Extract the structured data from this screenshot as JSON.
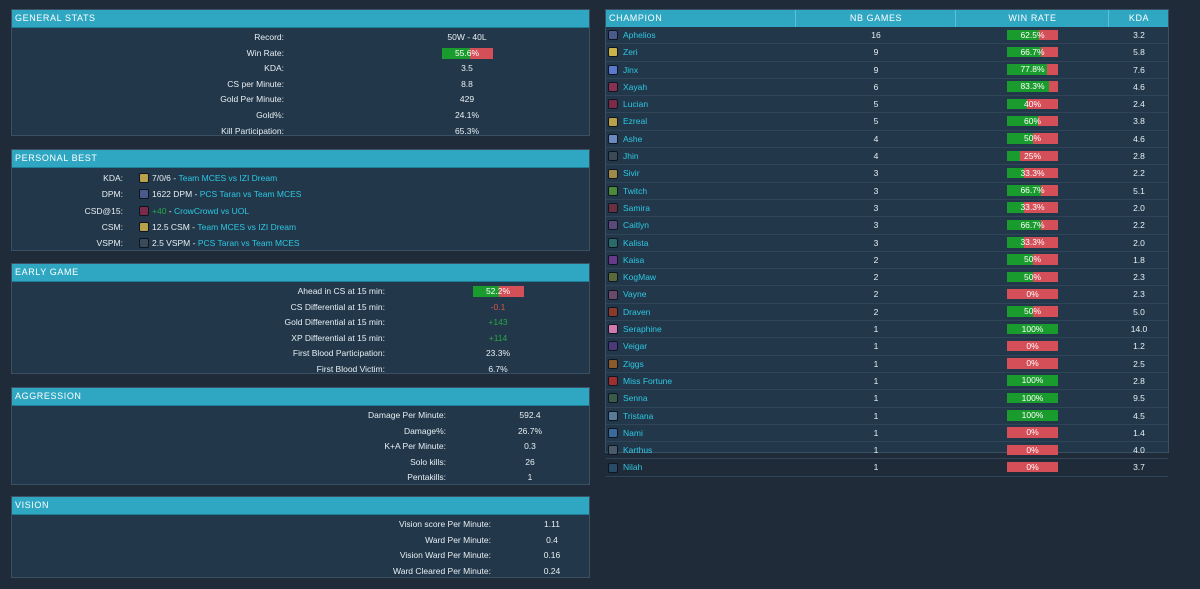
{
  "general_stats": {
    "title": "GENERAL STATS",
    "rows": [
      {
        "label": "Record:",
        "value": "50W - 40L"
      },
      {
        "label": "Win Rate:",
        "value": "55.6%",
        "bar_pct": 55.6
      },
      {
        "label": "KDA:",
        "value": "3.5"
      },
      {
        "label": "CS per Minute:",
        "value": "8.8"
      },
      {
        "label": "Gold Per Minute:",
        "value": "429"
      },
      {
        "label": "Gold%:",
        "value": "24.1%"
      },
      {
        "label": "Kill Participation:",
        "value": "65.3%"
      }
    ]
  },
  "personal_best": {
    "title": "PERSONAL BEST",
    "rows": [
      {
        "label": "KDA:",
        "icon": "ezreal-icon",
        "icon_color": "#b8a14a",
        "value": "7/0/6",
        "sep": " - ",
        "match": "Team MCES vs IZI Dream"
      },
      {
        "label": "DPM:",
        "icon": "aphelios-icon",
        "icon_color": "#4a5a8a",
        "value": "1622 DPM",
        "sep": " - ",
        "match": "PCS Taran vs Team MCES"
      },
      {
        "label": "CSD@15:",
        "icon": "lucian-icon",
        "icon_color": "#7a2b4a",
        "value": "+40",
        "sep": " - ",
        "match": "CrowCrowd vs UOL"
      },
      {
        "label": "CSM:",
        "icon": "ezreal-icon",
        "icon_color": "#b8a14a",
        "value": "12.5 CSM",
        "sep": " - ",
        "match": "Team MCES vs IZI Dream"
      },
      {
        "label": "VSPM:",
        "icon": "jhin-icon",
        "icon_color": "#3a4a58",
        "value": "2.5 VSPM",
        "sep": " - ",
        "match": "PCS Taran vs Team MCES"
      }
    ]
  },
  "early_game": {
    "title": "EARLY GAME",
    "rows": [
      {
        "label": "Ahead in CS at 15 min:",
        "value": "52.2%",
        "bar_pct": 52.2
      },
      {
        "label": "CS Differential at 15 min:",
        "value": "-0.1",
        "tone": "red"
      },
      {
        "label": "Gold Differential at 15 min:",
        "value": "+143",
        "tone": "green"
      },
      {
        "label": "XP Differential at 15 min:",
        "value": "+114",
        "tone": "green"
      },
      {
        "label": "First Blood Participation:",
        "value": "23.3%"
      },
      {
        "label": "First Blood Victim:",
        "value": "6.7%"
      }
    ]
  },
  "aggression": {
    "title": "AGGRESSION",
    "rows": [
      {
        "label": "Damage Per Minute:",
        "value": "592.4"
      },
      {
        "label": "Damage%:",
        "value": "26.7%"
      },
      {
        "label": "K+A Per Minute:",
        "value": "0.3"
      },
      {
        "label": "Solo kills:",
        "value": "26"
      },
      {
        "label": "Pentakills:",
        "value": "1"
      }
    ]
  },
  "vision": {
    "title": "VISION",
    "rows": [
      {
        "label": "Vision score Per Minute:",
        "value": "1.11"
      },
      {
        "label": "Ward Per Minute:",
        "value": "0.4"
      },
      {
        "label": "Vision Ward Per Minute:",
        "value": "0.16"
      },
      {
        "label": "Ward Cleared Per Minute:",
        "value": "0.24"
      }
    ]
  },
  "champions": {
    "headers": {
      "champion": "CHAMPION",
      "games": "NB GAMES",
      "winrate": "WIN RATE",
      "kda": "KDA"
    },
    "rows": [
      {
        "name": "Aphelios",
        "games": "16",
        "winrate": "62.5%",
        "wr_pct": 62.5,
        "kda": "3.2",
        "icon_color": "#4a5a8a"
      },
      {
        "name": "Zeri",
        "games": "9",
        "winrate": "66.7%",
        "wr_pct": 66.7,
        "kda": "5.8",
        "icon_color": "#c9b34a"
      },
      {
        "name": "Jinx",
        "games": "9",
        "winrate": "77.8%",
        "wr_pct": 77.8,
        "kda": "7.6",
        "icon_color": "#5a7ad0"
      },
      {
        "name": "Xayah",
        "games": "6",
        "winrate": "83.3%",
        "wr_pct": 83.3,
        "kda": "4.6",
        "icon_color": "#8a3050"
      },
      {
        "name": "Lucian",
        "games": "5",
        "winrate": "40%",
        "wr_pct": 40,
        "kda": "2.4",
        "icon_color": "#7a2b4a"
      },
      {
        "name": "Ezreal",
        "games": "5",
        "winrate": "60%",
        "wr_pct": 60,
        "kda": "3.8",
        "icon_color": "#b8a14a"
      },
      {
        "name": "Ashe",
        "games": "4",
        "winrate": "50%",
        "wr_pct": 50,
        "kda": "4.6",
        "icon_color": "#6a8ac0"
      },
      {
        "name": "Jhin",
        "games": "4",
        "winrate": "25%",
        "wr_pct": 25,
        "kda": "2.8",
        "icon_color": "#3a4a58"
      },
      {
        "name": "Sivir",
        "games": "3",
        "winrate": "33.3%",
        "wr_pct": 33.3,
        "kda": "2.2",
        "icon_color": "#a08a4a"
      },
      {
        "name": "Twitch",
        "games": "3",
        "winrate": "66.7%",
        "wr_pct": 66.7,
        "kda": "5.1",
        "icon_color": "#4a8a3a"
      },
      {
        "name": "Samira",
        "games": "3",
        "winrate": "33.3%",
        "wr_pct": 33.3,
        "kda": "2.0",
        "icon_color": "#6a3040"
      },
      {
        "name": "Caitlyn",
        "games": "3",
        "winrate": "66.7%",
        "wr_pct": 66.7,
        "kda": "2.2",
        "icon_color": "#5a4a7a"
      },
      {
        "name": "Kalista",
        "games": "3",
        "winrate": "33.3%",
        "wr_pct": 33.3,
        "kda": "2.0",
        "icon_color": "#2a6a6a"
      },
      {
        "name": "Kaisa",
        "games": "2",
        "winrate": "50%",
        "wr_pct": 50,
        "kda": "1.8",
        "icon_color": "#6a3a8a"
      },
      {
        "name": "KogMaw",
        "games": "2",
        "winrate": "50%",
        "wr_pct": 50,
        "kda": "2.3",
        "icon_color": "#5a6a3a"
      },
      {
        "name": "Vayne",
        "games": "2",
        "winrate": "0%",
        "wr_pct": 0,
        "kda": "2.3",
        "icon_color": "#6a4a6a"
      },
      {
        "name": "Draven",
        "games": "2",
        "winrate": "50%",
        "wr_pct": 50,
        "kda": "5.0",
        "icon_color": "#8a3a2a"
      },
      {
        "name": "Seraphine",
        "games": "1",
        "winrate": "100%",
        "wr_pct": 100,
        "kda": "14.0",
        "icon_color": "#d07ab0"
      },
      {
        "name": "Veigar",
        "games": "1",
        "winrate": "0%",
        "wr_pct": 0,
        "kda": "1.2",
        "icon_color": "#4a3a7a"
      },
      {
        "name": "Ziggs",
        "games": "1",
        "winrate": "0%",
        "wr_pct": 0,
        "kda": "2.5",
        "icon_color": "#8a5a2a"
      },
      {
        "name": "Miss Fortune",
        "games": "1",
        "winrate": "100%",
        "wr_pct": 100,
        "kda": "2.8",
        "icon_color": "#a03030"
      },
      {
        "name": "Senna",
        "games": "1",
        "winrate": "100%",
        "wr_pct": 100,
        "kda": "9.5",
        "icon_color": "#3a5a4a"
      },
      {
        "name": "Tristana",
        "games": "1",
        "winrate": "100%",
        "wr_pct": 100,
        "kda": "4.5",
        "icon_color": "#5a7a9a"
      },
      {
        "name": "Nami",
        "games": "1",
        "winrate": "0%",
        "wr_pct": 0,
        "kda": "1.4",
        "icon_color": "#3a6a9a"
      },
      {
        "name": "Karthus",
        "games": "1",
        "winrate": "0%",
        "wr_pct": 0,
        "kda": "4.0",
        "icon_color": "#4a5a6a"
      },
      {
        "name": "Nilah",
        "games": "1",
        "winrate": "0%",
        "wr_pct": 0,
        "kda": "3.7",
        "icon_color": "#2a4a6a"
      }
    ]
  },
  "colors": {
    "accent": "#2fa7c3",
    "win": "#1a9b2d",
    "loss": "#d54f58",
    "link": "#2ec7e3"
  }
}
